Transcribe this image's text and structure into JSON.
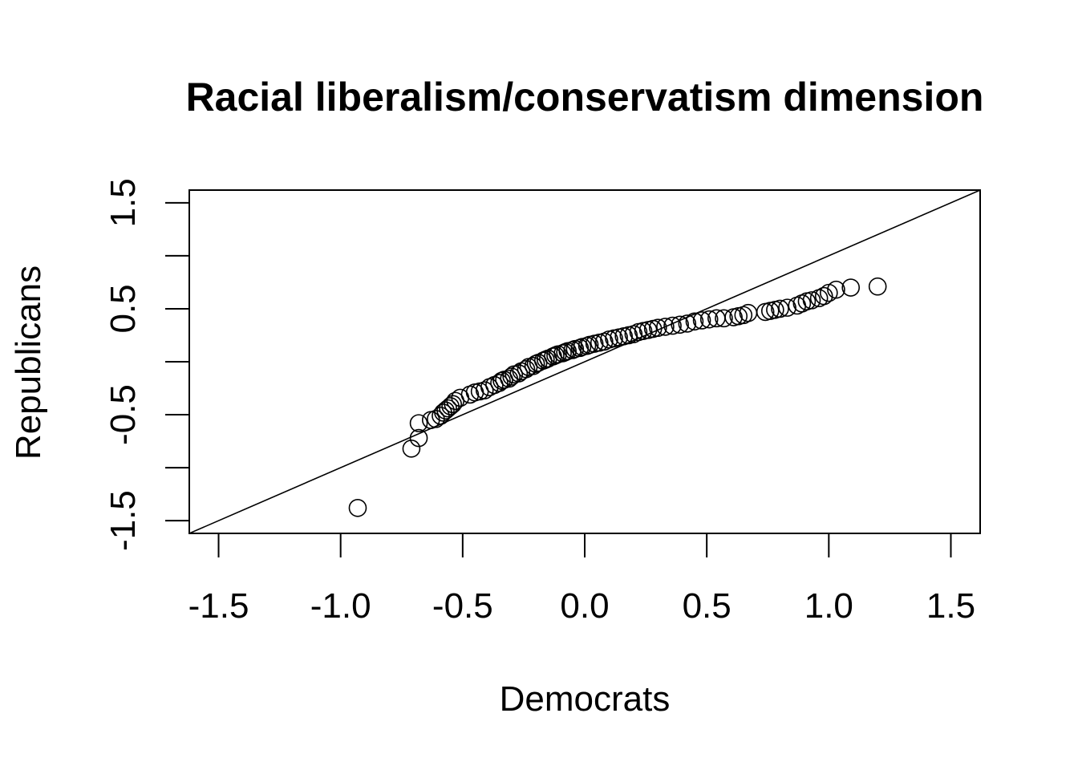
{
  "chart_data": {
    "type": "scatter",
    "title": "Racial liberalism/conservatism dimension",
    "xlabel": "Democrats",
    "ylabel": "Republicans",
    "xlim": [
      -1.62,
      1.62
    ],
    "ylim": [
      -1.62,
      1.62
    ],
    "x_ticks": [
      -1.5,
      -1.0,
      -0.5,
      0.0,
      0.5,
      1.0,
      1.5
    ],
    "x_tick_labels": [
      "-1.5",
      "-1.0",
      "-0.5",
      "0.0",
      "0.5",
      "1.0",
      "1.5"
    ],
    "y_ticks": [
      -1.5,
      -1.0,
      -0.5,
      0.0,
      0.5,
      1.0,
      1.5
    ],
    "y_tick_labels": [
      "-1.5",
      "",
      "-0.5",
      "",
      "0.5",
      "",
      "1.5"
    ],
    "reference_line": {
      "slope": 1,
      "intercept": 0
    },
    "marker": "open-circle",
    "grid": false,
    "points": {
      "x": [
        -0.93,
        -0.71,
        -0.68,
        -0.68,
        -0.63,
        -0.61,
        -0.59,
        -0.58,
        -0.57,
        -0.56,
        -0.55,
        -0.54,
        -0.53,
        -0.51,
        -0.47,
        -0.45,
        -0.43,
        -0.41,
        -0.39,
        -0.37,
        -0.35,
        -0.34,
        -0.33,
        -0.31,
        -0.3,
        -0.29,
        -0.27,
        -0.26,
        -0.24,
        -0.23,
        -0.21,
        -0.2,
        -0.19,
        -0.17,
        -0.16,
        -0.15,
        -0.13,
        -0.12,
        -0.11,
        -0.09,
        -0.08,
        -0.07,
        -0.05,
        -0.04,
        -0.02,
        -0.01,
        0.01,
        0.02,
        0.04,
        0.06,
        0.08,
        0.1,
        0.12,
        0.14,
        0.16,
        0.18,
        0.2,
        0.22,
        0.24,
        0.26,
        0.28,
        0.3,
        0.33,
        0.36,
        0.39,
        0.42,
        0.45,
        0.48,
        0.51,
        0.54,
        0.57,
        0.61,
        0.63,
        0.65,
        0.67,
        0.74,
        0.76,
        0.78,
        0.8,
        0.83,
        0.87,
        0.89,
        0.91,
        0.93,
        0.96,
        0.98,
        1.0,
        1.03,
        1.09,
        1.2
      ],
      "y": [
        -1.38,
        -0.82,
        -0.72,
        -0.58,
        -0.55,
        -0.54,
        -0.51,
        -0.48,
        -0.46,
        -0.44,
        -0.42,
        -0.4,
        -0.37,
        -0.34,
        -0.31,
        -0.29,
        -0.28,
        -0.27,
        -0.24,
        -0.22,
        -0.2,
        -0.18,
        -0.17,
        -0.16,
        -0.14,
        -0.12,
        -0.11,
        -0.09,
        -0.07,
        -0.05,
        -0.04,
        -0.02,
        -0.01,
        0.01,
        0.02,
        0.03,
        0.05,
        0.06,
        0.07,
        0.08,
        0.09,
        0.1,
        0.11,
        0.12,
        0.13,
        0.14,
        0.15,
        0.16,
        0.17,
        0.18,
        0.19,
        0.21,
        0.22,
        0.23,
        0.24,
        0.25,
        0.26,
        0.28,
        0.29,
        0.3,
        0.31,
        0.32,
        0.33,
        0.34,
        0.35,
        0.36,
        0.38,
        0.39,
        0.4,
        0.41,
        0.41,
        0.42,
        0.43,
        0.44,
        0.46,
        0.47,
        0.48,
        0.49,
        0.5,
        0.51,
        0.53,
        0.55,
        0.57,
        0.58,
        0.6,
        0.62,
        0.65,
        0.68,
        0.7,
        0.71
      ]
    }
  }
}
